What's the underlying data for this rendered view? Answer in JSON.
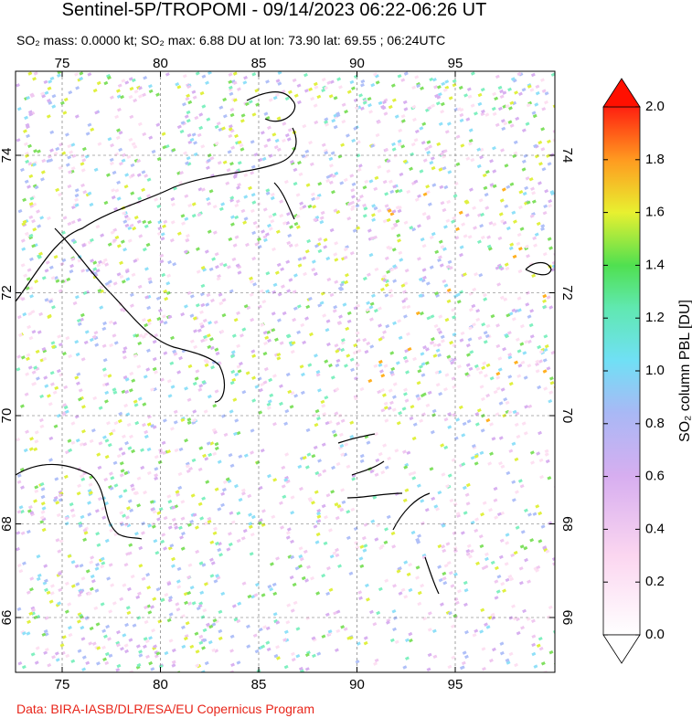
{
  "title": "Sentinel-5P/TROPOMI - 09/14/2023 06:22-06:26 UT",
  "subtitle": "SO₂ mass: 0.0000 kt; SO₂ max: 6.88 DU at lon: 73.90 lat: 69.55 ; 06:24UTC",
  "map": {
    "lon_ticks": [
      75,
      80,
      85,
      90,
      95
    ],
    "lat_ticks": [
      74,
      72,
      70,
      68,
      66
    ]
  },
  "colorbar": {
    "label": "SO₂ column PBL [DU]",
    "ticks": [
      {
        "value": 0,
        "label": "0.0"
      },
      {
        "value": 0.2,
        "label": "0.2"
      },
      {
        "value": 0.4,
        "label": "0.4"
      },
      {
        "value": 0.6,
        "label": "0.6"
      },
      {
        "value": 0.8,
        "label": "0.8"
      },
      {
        "value": 1,
        "label": "1.0"
      },
      {
        "value": 1.2,
        "label": "1.2"
      },
      {
        "value": 1.4,
        "label": "1.4"
      },
      {
        "value": 1.6,
        "label": "1.6"
      },
      {
        "value": 1.8,
        "label": "1.8"
      },
      {
        "value": 2,
        "label": "2.0"
      }
    ]
  },
  "credit": "Data: BIRA-IASB/DLR/ESA/EU Copernicus Program"
}
